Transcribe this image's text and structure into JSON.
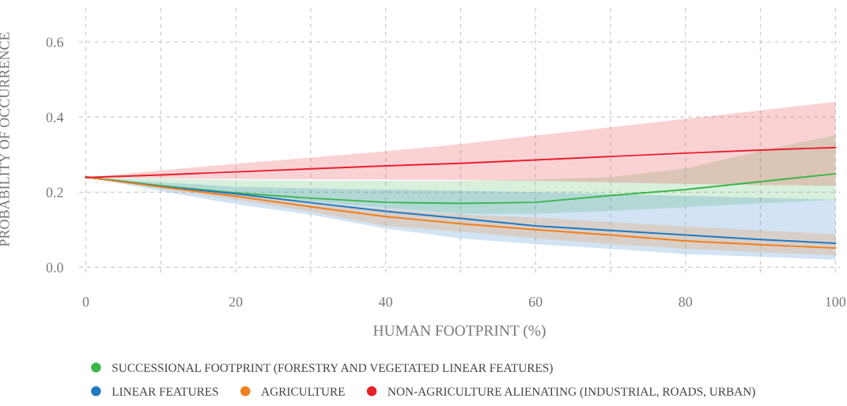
{
  "chart_data": {
    "type": "line",
    "xlabel": "HUMAN FOOTPRINT (%)",
    "ylabel": "PROBABILITY OF OCCURRENCE",
    "x": [
      0,
      10,
      20,
      30,
      40,
      50,
      60,
      70,
      80,
      90,
      100
    ],
    "series": [
      {
        "name": "SUCCESSIONAL FOOTPRINT (FORESTRY AND VEGETATED LINEAR FEATURES)",
        "color": "#3bb54a",
        "values": [
          0.24,
          0.217,
          0.198,
          0.184,
          0.173,
          0.17,
          0.173,
          0.191,
          0.207,
          0.228,
          0.249
        ],
        "lower": [
          0.24,
          0.21,
          0.19,
          0.175,
          0.158,
          0.142,
          0.142,
          0.15,
          0.16,
          0.17,
          0.18
        ],
        "upper": [
          0.24,
          0.236,
          0.232,
          0.231,
          0.23,
          0.23,
          0.233,
          0.24,
          0.263,
          0.31,
          0.352
        ]
      },
      {
        "name": "LINEAR FEATURES",
        "color": "#1f78c1",
        "values": [
          0.24,
          0.215,
          0.196,
          0.172,
          0.149,
          0.13,
          0.11,
          0.098,
          0.086,
          0.074,
          0.064
        ],
        "lower": [
          0.24,
          0.203,
          0.168,
          0.14,
          0.103,
          0.077,
          0.061,
          0.049,
          0.035,
          0.028,
          0.02
        ],
        "upper": [
          0.24,
          0.226,
          0.215,
          0.21,
          0.207,
          0.204,
          0.2,
          0.195,
          0.19,
          0.185,
          0.18
        ]
      },
      {
        "name": "AGRICULTURE",
        "color": "#f07f1d",
        "values": [
          0.24,
          0.214,
          0.189,
          0.161,
          0.135,
          0.116,
          0.1,
          0.086,
          0.07,
          0.06,
          0.051
        ],
        "lower": [
          0.24,
          0.21,
          0.18,
          0.148,
          0.11,
          0.095,
          0.077,
          0.062,
          0.049,
          0.04,
          0.032
        ],
        "upper": [
          0.24,
          0.22,
          0.197,
          0.172,
          0.155,
          0.14,
          0.133,
          0.12,
          0.109,
          0.098,
          0.088
        ]
      },
      {
        "name": "NON-AGRICULTURE ALIENATING (INDUSTRIAL, ROADS, URBAN)",
        "color": "#e8202a",
        "values": [
          0.239,
          0.246,
          0.254,
          0.262,
          0.27,
          0.277,
          0.286,
          0.295,
          0.304,
          0.312,
          0.319
        ],
        "lower": [
          0.239,
          0.237,
          0.235,
          0.234,
          0.233,
          0.232,
          0.23,
          0.226,
          0.222,
          0.219,
          0.217
        ],
        "upper": [
          0.239,
          0.258,
          0.276,
          0.292,
          0.309,
          0.328,
          0.351,
          0.373,
          0.395,
          0.418,
          0.441
        ]
      }
    ],
    "xlim": [
      -0.9,
      100.6
    ],
    "ylim": [
      -0.014,
      0.695
    ],
    "xticks": [
      0,
      {
        "value": 10,
        "label": null
      },
      20,
      {
        "value": 30,
        "label": null
      },
      40,
      {
        "value": 50,
        "label": null
      },
      60,
      {
        "value": 70,
        "label": null
      },
      80,
      {
        "value": 90,
        "label": null
      },
      100
    ],
    "yticks": [
      {
        "value": 0,
        "label": "0.0"
      },
      {
        "value": 0.2,
        "label": "0.2"
      },
      {
        "value": 0.4,
        "label": "0.4"
      },
      {
        "value": 0.6,
        "label": "0.6"
      }
    ],
    "grid": true,
    "legend": "bottom",
    "marker": "none",
    "line_style": "solid"
  }
}
